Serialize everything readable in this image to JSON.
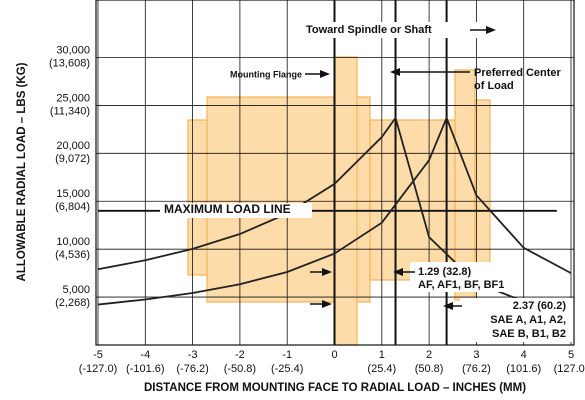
{
  "chart_data": {
    "type": "line",
    "xlabel": "DISTANCE FROM MOUNTING FACE TO RADIAL LOAD – INCHES (MM)",
    "ylabel": "ALLOWABLE RADIAL LOAD – LBS (KG)",
    "xlim": [
      -5,
      5
    ],
    "ylim": [
      0,
      36000
    ],
    "xticks": [
      -5,
      -4,
      -3,
      -2,
      -1,
      0,
      1,
      2,
      3,
      4,
      5
    ],
    "xtick_mm_labels": [
      "(-127.0)",
      "(-101.6)",
      "(-76.2)",
      "(-50.8)",
      "(-25.4)",
      null,
      "(25.4)",
      "(50.8)",
      "(76.2)",
      "(101.6)",
      "(127.0)"
    ],
    "yticks": [
      {
        "value": 5000,
        "label": "5,000"
      },
      {
        "value": 10000,
        "label": "10,000"
      },
      {
        "value": 15000,
        "label": "15,000"
      },
      {
        "value": 20000,
        "label": "20,000"
      },
      {
        "value": 25000,
        "label": "25,000"
      },
      {
        "value": 30000,
        "label": "30,000"
      }
    ],
    "ytick_kg_labels": [
      "(2,268)",
      "(4,536)",
      "(6,804)",
      "(9,072)",
      "(11,340)",
      "(13,608)"
    ],
    "grid": true,
    "series": [
      {
        "color": "#222222",
        "x": [
          -5,
          -4,
          -3,
          -2,
          -1,
          0,
          1,
          1.29,
          2,
          3,
          4,
          5
        ],
        "values": [
          7900,
          8840,
          10030,
          11580,
          13720,
          16810,
          21700,
          23700,
          11260,
          6480,
          4550,
          3500
        ]
      },
      {
        "color": "#222222",
        "x": [
          -5,
          -4,
          -3,
          -2,
          -1,
          0,
          1,
          2,
          2.37,
          3,
          4,
          5
        ],
        "values": [
          4220,
          4750,
          5430,
          6340,
          7620,
          9540,
          12760,
          19280,
          23700,
          15620,
          10140,
          7500
        ]
      }
    ],
    "max_load_line": 14000,
    "reference_lines": [
      0,
      1.29,
      2.37
    ],
    "annotations": {
      "max": "MAXIMUM LOAD LINE",
      "flange": "Mounting Flange",
      "spindle": "Toward Spindle or Shaft",
      "center": [
        "Preferred Center",
        "of Load"
      ],
      "af": [
        "1.29 (32.8)",
        "AF, AF1, BF, BF1"
      ],
      "sae": [
        "2.37 (60.2)",
        "SAE A, A1, A2,",
        "SAE B, B1, B2"
      ]
    }
  }
}
